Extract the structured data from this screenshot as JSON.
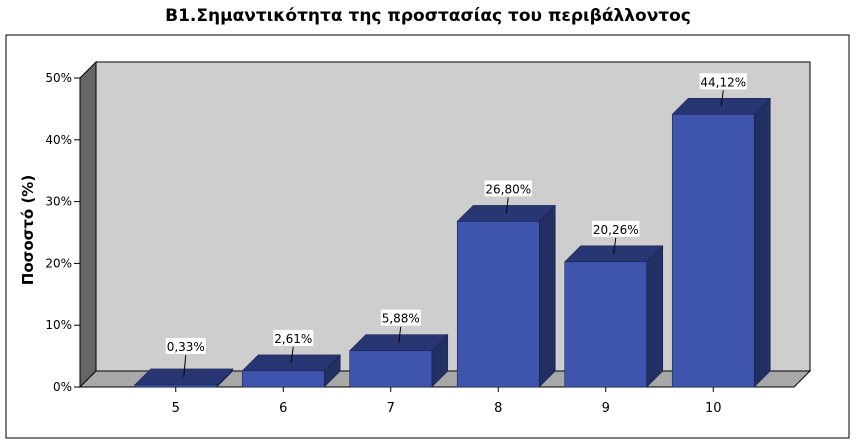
{
  "chart_data": {
    "type": "bar",
    "title": "B1.Σημαντικότητα της προστασίας του περιβάλλοντος",
    "ylabel": "Ποσοστό (%)",
    "xlabel": "",
    "categories": [
      "5",
      "6",
      "7",
      "8",
      "9",
      "10"
    ],
    "values": [
      0.33,
      2.61,
      5.88,
      26.8,
      20.26,
      44.12
    ],
    "data_labels": [
      "0,33%",
      "2,61%",
      "5,88%",
      "26,80%",
      "20,26%",
      "44,12%"
    ],
    "y_ticks": [
      "0%",
      "10%",
      "20%",
      "30%",
      "40%",
      "50%"
    ],
    "ylim": [
      0,
      50
    ],
    "grid": false,
    "bar_color": "#3f55ad",
    "bar_top_color": "#283773",
    "bar_side_color": "#222f62",
    "plot_back_color": "#cecece",
    "plot_side_color": "#666666",
    "plot_floor_color": "#a8a8a8"
  }
}
